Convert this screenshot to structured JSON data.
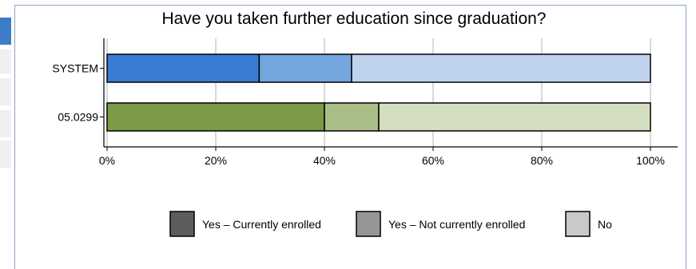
{
  "chart_data": {
    "type": "bar",
    "orientation": "horizontal",
    "stacked": true,
    "title": "Have you taken further education since graduation?",
    "categories": [
      "SYSTEM",
      "05.0299"
    ],
    "series": [
      {
        "name": "Yes – Currently enrolled",
        "values": [
          28,
          40
        ]
      },
      {
        "name": "Yes – Not currently enrolled",
        "values": [
          17,
          10
        ]
      },
      {
        "name": "No",
        "values": [
          55,
          50
        ]
      }
    ],
    "xlim": [
      0,
      100
    ],
    "xticks": [
      "0%",
      "20%",
      "40%",
      "60%",
      "80%",
      "100%"
    ],
    "grid": true,
    "legend_position": "bottom",
    "row_colors": {
      "SYSTEM": [
        "#3a7bd5",
        "#74a6e0",
        "#bfd3ee"
      ],
      "05.0299": [
        "#7a9a45",
        "#a9bd86",
        "#d4dfc1"
      ]
    },
    "legend_colors": [
      "#5c5c5c",
      "#969696",
      "#c9c9c9"
    ]
  }
}
